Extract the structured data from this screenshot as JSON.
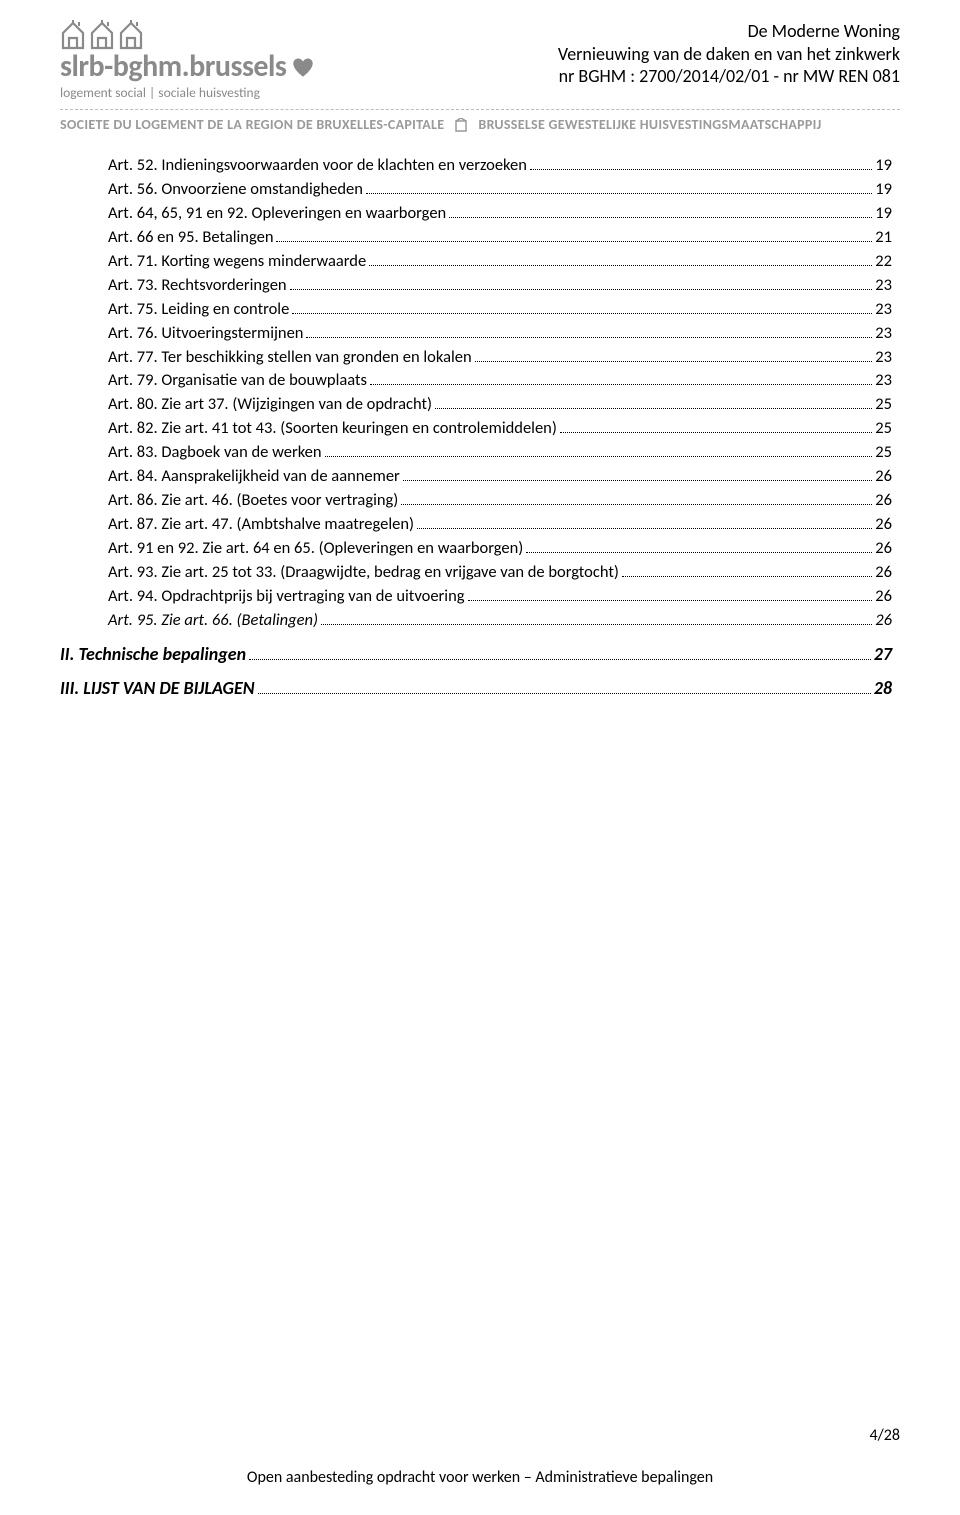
{
  "header": {
    "logo_main": "slrb-bghm.brussels",
    "logo_sub": "logement social | sociale huisvesting",
    "title_line1": "De Moderne Woning",
    "title_line2": "Vernieuwing van de daken en van het zinkwerk",
    "title_line3": "nr BGHM : 2700/2014/02/01 - nr MW REN 081",
    "subheader_left": "SOCIETE DU LOGEMENT DE LA REGION DE BRUXELLES-CAPITALE",
    "subheader_right": "BRUSSELSE GEWESTELIJKE HUISVESTINGSMAATSCHAPPIJ"
  },
  "toc_entries": [
    {
      "label": "Art. 52. Indieningsvoorwaarden voor de klachten en verzoeken",
      "page": "19"
    },
    {
      "label": "Art. 56. Onvoorziene omstandigheden",
      "page": "19"
    },
    {
      "label": "Art. 64, 65, 91 en 92. Opleveringen en waarborgen",
      "page": "19"
    },
    {
      "label": "Art. 66 en 95. Betalingen",
      "page": "21"
    },
    {
      "label": "Art. 71. Korting wegens minderwaarde",
      "page": "22"
    },
    {
      "label": "Art. 73. Rechtsvorderingen",
      "page": "23"
    },
    {
      "label": "Art. 75. Leiding en controle",
      "page": "23"
    },
    {
      "label": "Art. 76. Uitvoeringstermijnen",
      "page": "23"
    },
    {
      "label": "Art. 77. Ter beschikking stellen van gronden en lokalen",
      "page": "23"
    },
    {
      "label": "Art. 79. Organisatie van de bouwplaats",
      "page": "23"
    },
    {
      "label": "Art. 80. Zie art 37. (Wijzigingen van de opdracht)",
      "page": "25"
    },
    {
      "label": "Art. 82. Zie art. 41 tot 43. (Soorten keuringen en controlemiddelen)",
      "page": "25"
    },
    {
      "label": "Art. 83. Dagboek van de werken",
      "page": "25"
    },
    {
      "label": "Art. 84. Aansprakelijkheid van de aannemer",
      "page": "26"
    },
    {
      "label": "Art. 86. Zie art. 46. (Boetes voor vertraging)",
      "page": "26"
    },
    {
      "label": "Art. 87. Zie art. 47. (Ambtshalve maatregelen)",
      "page": "26"
    },
    {
      "label": "Art. 91 en 92. Zie art. 64 en 65. (Opleveringen en waarborgen)",
      "page": "26"
    },
    {
      "label": "Art. 93. Zie art. 25 tot 33. (Draagwijdte, bedrag en vrijgave van de borgtocht)",
      "page": "26"
    },
    {
      "label": "Art. 94. Opdrachtprijs bij vertraging van de uitvoering",
      "page": "26"
    },
    {
      "label": "Art. 95. Zie art. 66. (Betalingen)",
      "page": "26",
      "italic": true
    }
  ],
  "toc_sections": [
    {
      "label": "II. Technische bepalingen",
      "page": "27"
    },
    {
      "label": "III. LIJST VAN DE BIJLAGEN",
      "page": "28"
    }
  ],
  "footer": {
    "page_num": "4/28",
    "text": "Open aanbesteding opdracht voor werken – Administratieve bepalingen"
  },
  "colors": {
    "logo_gray": "#8a8a8a",
    "subheader_gray": "#9a9a9a",
    "rule_gray": "#bcbcbc",
    "text": "#000000",
    "bg": "#ffffff"
  }
}
